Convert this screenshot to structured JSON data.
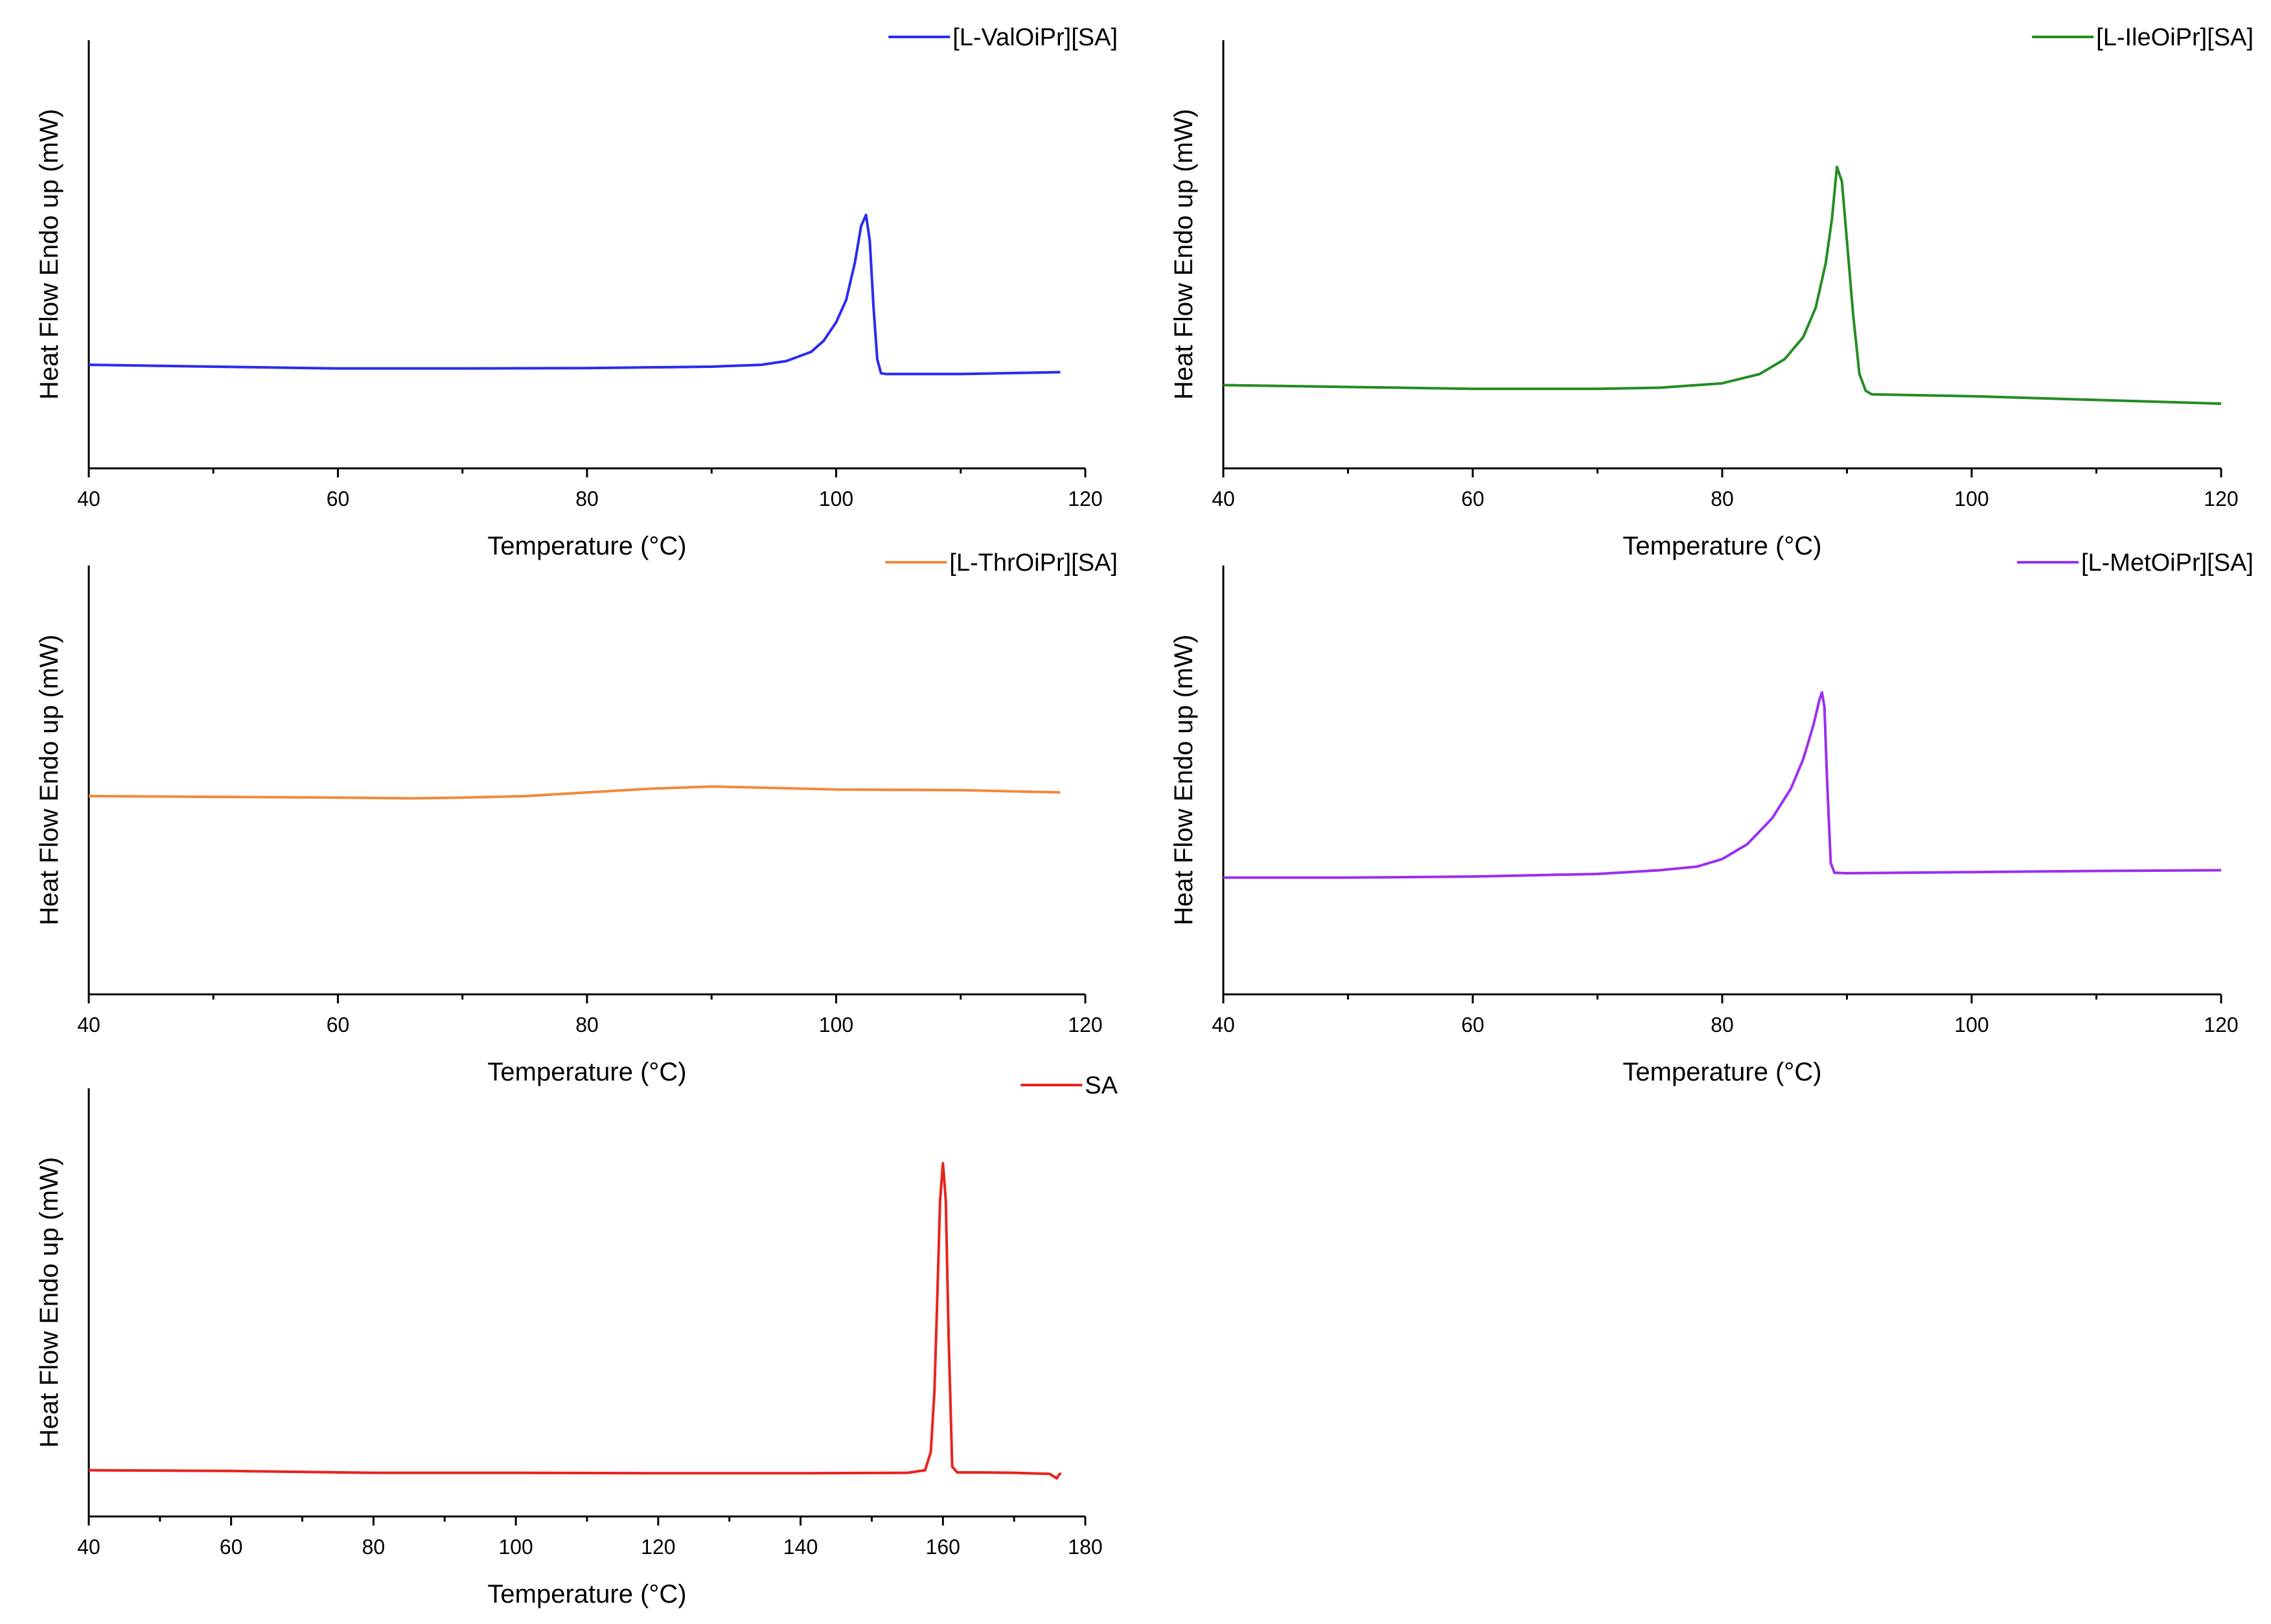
{
  "chart_data": [
    {
      "type": "line",
      "title": "",
      "xlabel": "Temperature (°C)",
      "ylabel": "Heat Flow Endo up (mW)",
      "xlim": [
        40,
        120
      ],
      "ylim": [
        0,
        100
      ],
      "xticks": [
        40,
        60,
        80,
        100,
        120
      ],
      "legend": "top-right",
      "grid": false,
      "series": [
        {
          "name": "[L-ValOiPr][SA]",
          "color": "#2b2bf0",
          "x": [
            40,
            50,
            60,
            70,
            80,
            90,
            94,
            96,
            98,
            99,
            100,
            100.8,
            101.5,
            102,
            102.4,
            102.7,
            103,
            103.3,
            103.6,
            104,
            105,
            110,
            118
          ],
          "y": [
            24.5,
            24,
            23.5,
            23.5,
            23.6,
            24,
            24.5,
            25.5,
            28,
            31,
            36,
            42,
            52,
            62,
            65,
            58,
            40,
            26,
            22.2,
            22,
            22,
            22,
            22.5
          ]
        }
      ]
    },
    {
      "type": "line",
      "title": "",
      "xlabel": "Temperature (°C)",
      "ylabel": "Heat Flow Endo up (mW)",
      "xlim": [
        40,
        120
      ],
      "ylim": [
        0,
        100
      ],
      "xticks": [
        40,
        60,
        80,
        100,
        120
      ],
      "legend": "top-right",
      "grid": false,
      "series": [
        {
          "name": "[L-IleOiPr][SA]",
          "color": "#238c23",
          "x": [
            40,
            50,
            60,
            70,
            75,
            80,
            83,
            85,
            86.5,
            87.5,
            88.3,
            88.8,
            89.2,
            89.6,
            90,
            90.5,
            91,
            91.5,
            92,
            95,
            100,
            110,
            120
          ],
          "y": [
            19,
            18.5,
            18,
            18,
            18.3,
            19.5,
            22,
            26,
            32,
            40,
            52,
            64,
            78,
            74,
            58,
            38,
            22,
            17.5,
            16.5,
            16.3,
            16,
            15,
            14
          ]
        }
      ]
    },
    {
      "type": "line",
      "title": "",
      "xlabel": "Temperature (°C)",
      "ylabel": "Heat Flow Endo up (mW)",
      "xlim": [
        40,
        120
      ],
      "ylim": [
        0,
        100
      ],
      "xticks": [
        40,
        60,
        80,
        100,
        120
      ],
      "legend": "top-right",
      "grid": false,
      "series": [
        {
          "name": "[L-ThrOiPr][SA]",
          "color": "#f08a3c",
          "x": [
            40,
            50,
            60,
            66,
            70,
            75,
            80,
            85,
            90,
            95,
            100,
            110,
            118
          ],
          "y": [
            50,
            49.8,
            49.6,
            49.4,
            49.6,
            50,
            51,
            52,
            52.6,
            52.2,
            51.8,
            51.6,
            51
          ]
        }
      ]
    },
    {
      "type": "line",
      "title": "",
      "xlabel": "Temperature (°C)",
      "ylabel": "Heat Flow Endo up (mW)",
      "xlim": [
        40,
        120
      ],
      "ylim": [
        0,
        100
      ],
      "xticks": [
        40,
        60,
        80,
        100,
        120
      ],
      "legend": "top-right",
      "grid": false,
      "series": [
        {
          "name": "[L-MetOiPr][SA]",
          "color": "#9a30f0",
          "x": [
            40,
            50,
            60,
            70,
            75,
            78,
            80,
            82,
            84,
            85.5,
            86.5,
            87.3,
            87.8,
            88,
            88.2,
            88.4,
            88.7,
            89,
            90,
            100,
            110,
            120
          ],
          "y": [
            28,
            28,
            28.3,
            29,
            30,
            31,
            33,
            37,
            44,
            52,
            60,
            69,
            76,
            78,
            74,
            55,
            32,
            29.3,
            29.2,
            29.5,
            29.8,
            30
          ]
        }
      ]
    },
    {
      "type": "line",
      "title": "",
      "xlabel": "Temperature (°C)",
      "ylabel": "Heat Flow Endo up (mW)",
      "xlim": [
        40,
        180
      ],
      "ylim": [
        0,
        100
      ],
      "xticks": [
        40,
        60,
        80,
        100,
        120,
        140,
        160,
        180
      ],
      "legend": "top-right",
      "grid": false,
      "series": [
        {
          "name": "SA",
          "color": "#e8231c",
          "x": [
            40,
            60,
            80,
            100,
            120,
            140,
            155,
            157.5,
            158.3,
            158.8,
            159.2,
            159.6,
            160,
            160.4,
            160.8,
            161.3,
            162,
            165,
            170,
            175,
            176,
            176.3,
            176.6
          ],
          "y": [
            9,
            8.8,
            8.3,
            8.3,
            8.2,
            8.2,
            8.3,
            9,
            14,
            30,
            55,
            82,
            92,
            82,
            45,
            10,
            8.4,
            8.4,
            8.3,
            8,
            6.8,
            7.8,
            8.2
          ]
        }
      ]
    }
  ]
}
